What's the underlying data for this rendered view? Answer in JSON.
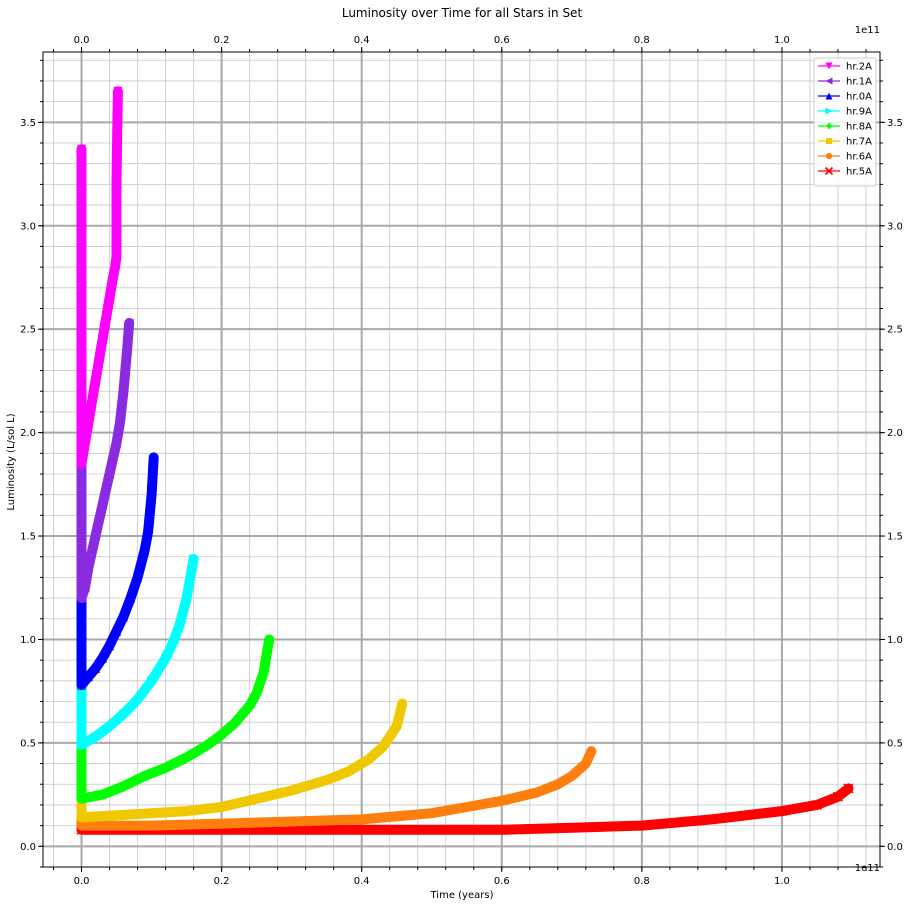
{
  "chart_data": {
    "type": "line",
    "title": "Luminosity over Time for all Stars in Set",
    "xlabel": "Time (years)",
    "ylabel": "Luminosity (L/sol L)",
    "x_offset_label": "1e11",
    "x_top_offset_label": "1e11",
    "xlim": [
      -0.055,
      1.14
    ],
    "ylim": [
      -0.1,
      3.84
    ],
    "x_ticks": [
      0.0,
      0.2,
      0.4,
      0.6,
      0.8,
      1.0
    ],
    "x_tick_labels": [
      "0.0",
      "0.2",
      "0.4",
      "0.6",
      "0.8",
      "1.0"
    ],
    "y_ticks": [
      0.0,
      0.5,
      1.0,
      1.5,
      2.0,
      2.5,
      3.0,
      3.5
    ],
    "y_tick_labels": [
      "0.0",
      "0.5",
      "1.0",
      "1.5",
      "2.0",
      "2.5",
      "3.0",
      "3.5"
    ],
    "grid": true,
    "legend_position": "top-right",
    "series": [
      {
        "name": "hr.2A",
        "color": "#ff00ff",
        "marker": "triangle-down",
        "x": [
          0.0,
          0.0,
          0.0,
          0.0,
          0.01,
          0.02,
          0.03,
          0.04,
          0.045,
          0.048,
          0.05,
          0.05,
          0.05,
          0.051,
          0.052
        ],
        "y": [
          3.37,
          2.6,
          2.0,
          1.85,
          2.05,
          2.25,
          2.45,
          2.65,
          2.75,
          2.8,
          2.85,
          3.0,
          3.2,
          3.45,
          3.65
        ]
      },
      {
        "name": "hr.1A",
        "color": "#8a2be2",
        "marker": "triangle-left",
        "x": [
          0.0,
          0.0,
          0.0,
          0.005,
          0.01,
          0.02,
          0.03,
          0.04,
          0.05,
          0.055,
          0.06,
          0.065,
          0.068
        ],
        "y": [
          2.25,
          1.6,
          1.2,
          1.25,
          1.35,
          1.5,
          1.65,
          1.8,
          1.95,
          2.05,
          2.2,
          2.4,
          2.53
        ]
      },
      {
        "name": "hr.0A",
        "color": "#0000ff",
        "marker": "triangle-up",
        "x": [
          0.0,
          0.0,
          0.0,
          0.01,
          0.02,
          0.03,
          0.04,
          0.05,
          0.06,
          0.07,
          0.08,
          0.09,
          0.095,
          0.1,
          0.103
        ],
        "y": [
          2.22,
          1.4,
          0.78,
          0.82,
          0.86,
          0.91,
          0.97,
          1.04,
          1.11,
          1.2,
          1.3,
          1.43,
          1.52,
          1.7,
          1.88
        ]
      },
      {
        "name": "hr.9A",
        "color": "#00ffff",
        "marker": "triangle-right",
        "x": [
          0.0,
          0.0,
          0.0,
          0.02,
          0.04,
          0.06,
          0.08,
          0.1,
          0.12,
          0.13,
          0.14,
          0.15,
          0.16
        ],
        "y": [
          1.75,
          1.0,
          0.49,
          0.53,
          0.58,
          0.64,
          0.71,
          0.8,
          0.91,
          0.98,
          1.07,
          1.2,
          1.39
        ]
      },
      {
        "name": "hr.8A",
        "color": "#00ff00",
        "marker": "diamond",
        "x": [
          0.0,
          0.0,
          0.0,
          0.03,
          0.06,
          0.09,
          0.12,
          0.15,
          0.18,
          0.2,
          0.22,
          0.24,
          0.25,
          0.26,
          0.268
        ],
        "y": [
          1.22,
          0.7,
          0.23,
          0.25,
          0.29,
          0.34,
          0.38,
          0.43,
          0.49,
          0.54,
          0.6,
          0.68,
          0.74,
          0.84,
          1.0
        ]
      },
      {
        "name": "hr.7A",
        "color": "#f0c800",
        "marker": "square",
        "x": [
          0.0,
          0.0,
          0.0,
          0.05,
          0.1,
          0.15,
          0.2,
          0.25,
          0.3,
          0.35,
          0.38,
          0.41,
          0.43,
          0.45,
          0.458
        ],
        "y": [
          0.91,
          0.5,
          0.14,
          0.15,
          0.16,
          0.17,
          0.19,
          0.23,
          0.27,
          0.32,
          0.36,
          0.42,
          0.48,
          0.58,
          0.69
        ]
      },
      {
        "name": "hr.6A",
        "color": "#ff7f0e",
        "marker": "circle",
        "x": [
          0.0,
          0.0,
          0.0,
          0.1,
          0.2,
          0.3,
          0.4,
          0.5,
          0.55,
          0.6,
          0.65,
          0.68,
          0.7,
          0.72,
          0.728
        ],
        "y": [
          0.55,
          0.3,
          0.1,
          0.1,
          0.11,
          0.12,
          0.13,
          0.16,
          0.19,
          0.22,
          0.26,
          0.3,
          0.34,
          0.4,
          0.46
        ]
      },
      {
        "name": "hr.5A",
        "color": "#ff0000",
        "marker": "x",
        "x": [
          0.0,
          0.0,
          0.0,
          0.1,
          0.2,
          0.3,
          0.4,
          0.5,
          0.6,
          0.7,
          0.8,
          0.9,
          1.0,
          1.05,
          1.08,
          1.095
        ],
        "y": [
          0.42,
          0.2,
          0.08,
          0.08,
          0.08,
          0.08,
          0.08,
          0.08,
          0.08,
          0.09,
          0.1,
          0.13,
          0.17,
          0.2,
          0.24,
          0.28
        ]
      }
    ]
  }
}
